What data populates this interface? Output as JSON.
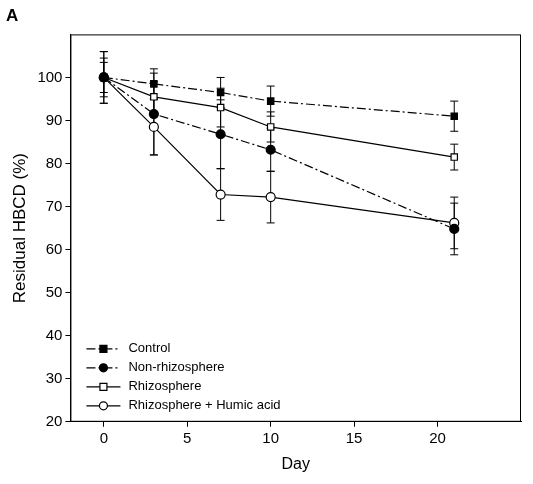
{
  "chart_data": {
    "type": "line",
    "title": "A",
    "x_label": "Day",
    "y_label": "Residual HBCD (%)",
    "xlim": [
      -2,
      25
    ],
    "xticks": [
      0,
      5,
      10,
      15,
      20
    ],
    "ylim": [
      20,
      110
    ],
    "yticks": [
      20,
      30,
      40,
      50,
      60,
      70,
      80,
      90,
      100
    ],
    "grid": false,
    "legend": "lower left",
    "x": [
      0,
      3,
      7,
      10,
      21
    ],
    "series": [
      {
        "name": "Control",
        "color": "#000000",
        "marker": "square",
        "line_style": "dashdot",
        "values": [
          100,
          98.5,
          96.5,
          94.5,
          91
        ],
        "errors": [
          6,
          3.5,
          3.5,
          3.5,
          3.5
        ]
      },
      {
        "name": "Non-rhizosphere",
        "color": "#000000",
        "marker": "circle",
        "line_style": "dashdot",
        "values": [
          100,
          91.5,
          86.8,
          83.2,
          64.8
        ],
        "errors": [
          6,
          9.5,
          8,
          5,
          6
        ]
      },
      {
        "name": "Rhizosphere",
        "color": "#000000",
        "marker": "open_square",
        "line_style": "solid",
        "values": [
          100,
          95.5,
          93,
          88.5,
          81.5
        ],
        "errors": [
          3.5,
          3.5,
          4.5,
          3.5,
          3
        ]
      },
      {
        "name": "Rhizosphere + Humic acid",
        "color": "#000000",
        "marker": "open_circle",
        "line_style": "solid",
        "values": [
          100,
          88.5,
          72.8,
          72.2,
          66.2
        ],
        "errors": [
          4.5,
          6.5,
          6,
          6,
          6
        ]
      }
    ]
  }
}
